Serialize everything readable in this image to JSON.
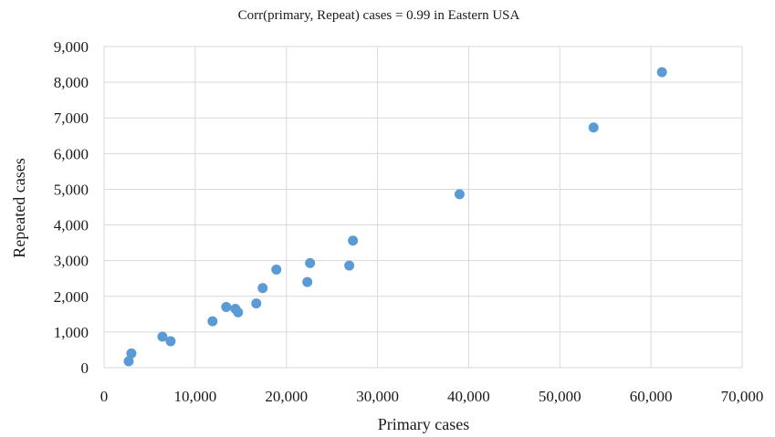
{
  "chart_data": {
    "type": "scatter",
    "title": "Corr(primary, Repeat) cases = 0.99 in Eastern USA",
    "xlabel": "Primary cases",
    "ylabel": "Repeated cases",
    "xlim": [
      0,
      70000
    ],
    "ylim": [
      0,
      9000
    ],
    "x_ticks": [
      0,
      10000,
      20000,
      30000,
      40000,
      50000,
      60000,
      70000
    ],
    "y_ticks": [
      0,
      1000,
      2000,
      3000,
      4000,
      5000,
      6000,
      7000,
      8000,
      9000
    ],
    "x_tick_labels": [
      "0",
      "10,000",
      "20,000",
      "30,000",
      "40,000",
      "50,000",
      "60,000",
      "70,000"
    ],
    "y_tick_labels": [
      "0",
      "1,000",
      "2,000",
      "3,000",
      "4,000",
      "5,000",
      "6,000",
      "7,000",
      "8,000",
      "9,000"
    ],
    "grid": true,
    "marker_color": "#5b9bd5",
    "series": [
      {
        "points": [
          {
            "x": 2700,
            "y": 180
          },
          {
            "x": 3000,
            "y": 400
          },
          {
            "x": 6400,
            "y": 870
          },
          {
            "x": 7300,
            "y": 740
          },
          {
            "x": 11900,
            "y": 1300
          },
          {
            "x": 13400,
            "y": 1700
          },
          {
            "x": 14400,
            "y": 1650
          },
          {
            "x": 14700,
            "y": 1550
          },
          {
            "x": 16700,
            "y": 1800
          },
          {
            "x": 17400,
            "y": 2230
          },
          {
            "x": 18900,
            "y": 2750
          },
          {
            "x": 22300,
            "y": 2400
          },
          {
            "x": 22600,
            "y": 2930
          },
          {
            "x": 26900,
            "y": 2860
          },
          {
            "x": 27300,
            "y": 3560
          },
          {
            "x": 39000,
            "y": 4860
          },
          {
            "x": 53700,
            "y": 6730
          },
          {
            "x": 61200,
            "y": 8280
          }
        ]
      }
    ]
  }
}
